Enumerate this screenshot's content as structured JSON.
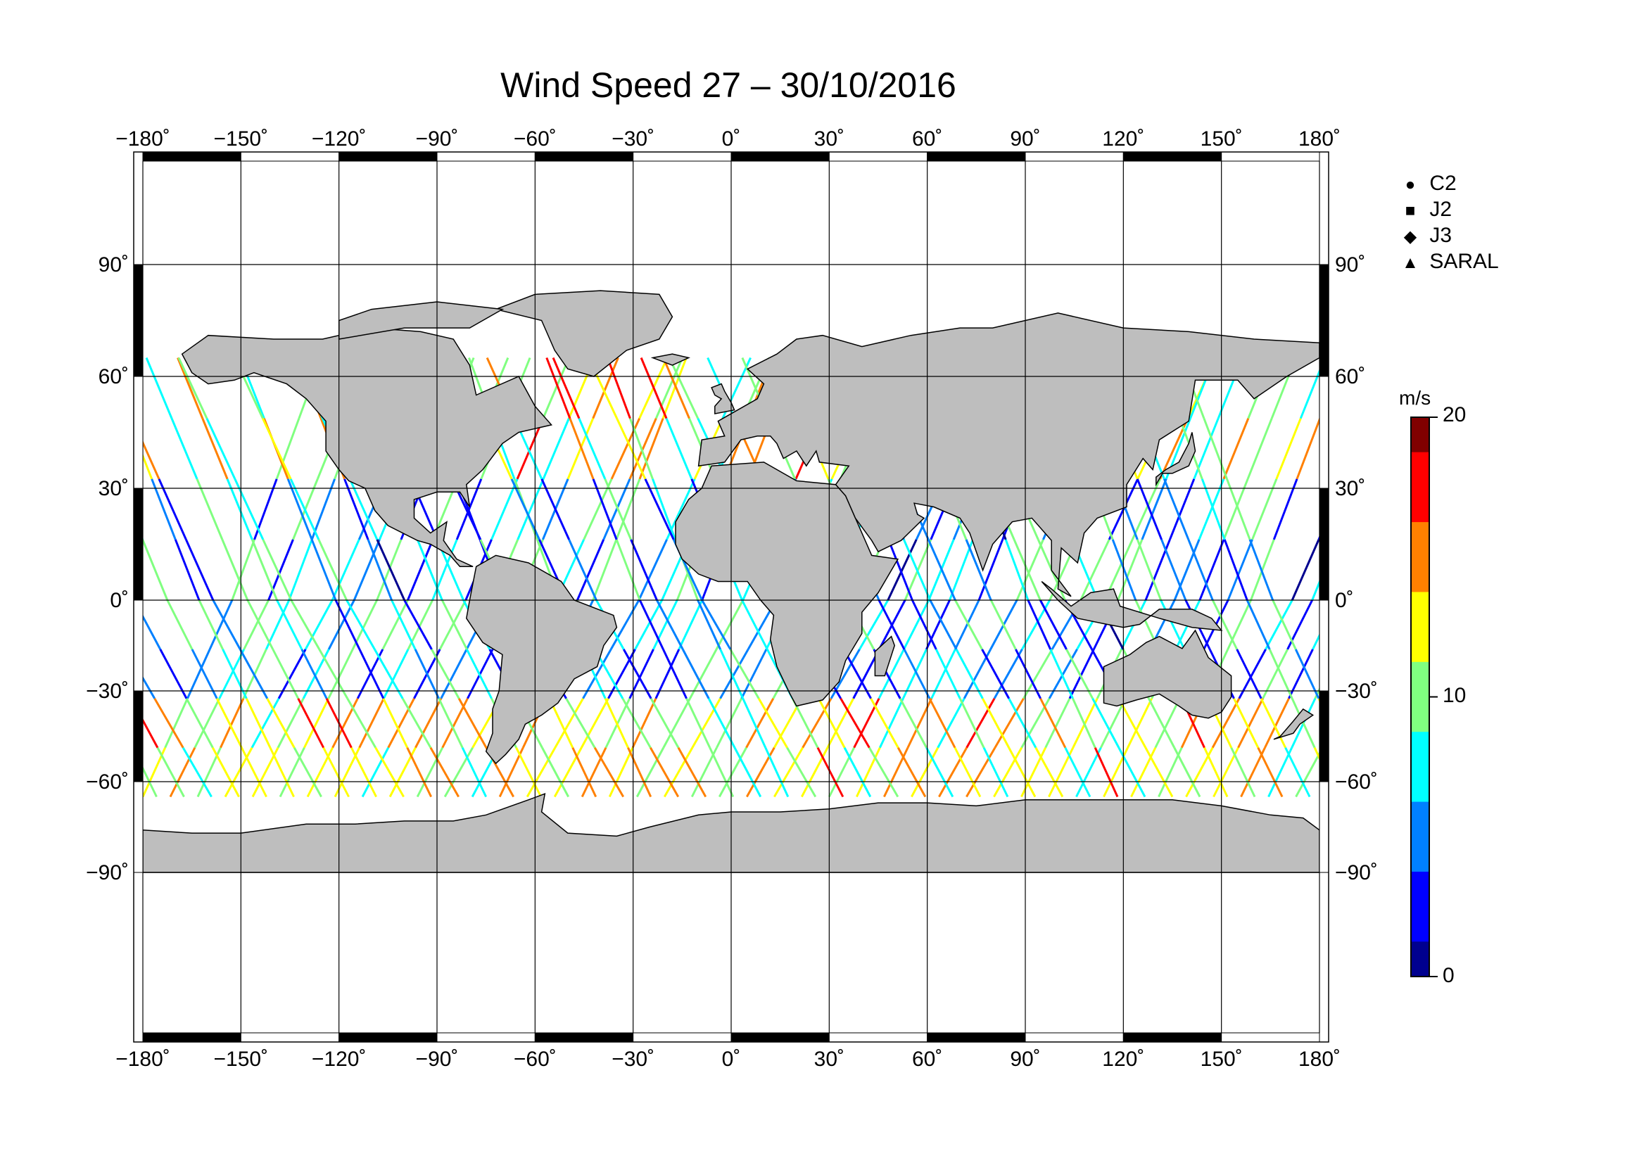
{
  "title": "Wind Speed 27 – 30/10/2016",
  "map": {
    "lon_ticks": [
      -180,
      -150,
      -120,
      -90,
      -60,
      -30,
      0,
      30,
      60,
      90,
      120,
      150,
      180
    ],
    "lat_ticks": [
      90,
      60,
      30,
      0,
      -30,
      -60,
      -90
    ],
    "lon_tick_labels": [
      "−180˚",
      "−150˚",
      "−120˚",
      "−90˚",
      "−60˚",
      "−30˚",
      "0˚",
      "30˚",
      "60˚",
      "90˚",
      "120˚",
      "150˚",
      "180˚"
    ],
    "lat_tick_labels": [
      "90˚",
      "60˚",
      "30˚",
      "0˚",
      "−30˚",
      "−60˚",
      "−90˚"
    ],
    "land_color": "#bebebe",
    "ocean_color": "#ffffff",
    "track_coverage_lat": [
      -65,
      65
    ]
  },
  "legend": {
    "items": [
      {
        "symbol": "circle-icon",
        "label": "C2"
      },
      {
        "symbol": "square-icon",
        "label": "J2"
      },
      {
        "symbol": "diamond-icon",
        "label": "J3"
      },
      {
        "symbol": "triangle-icon",
        "label": "SARAL"
      }
    ]
  },
  "colorbar": {
    "unit": "m/s",
    "min": 0,
    "max": 20,
    "tick_values": [
      0,
      10,
      20
    ],
    "tick_labels": [
      "0",
      "10",
      "20"
    ],
    "colormap": "jet",
    "colors": [
      "#00008f",
      "#0000ff",
      "#0080ff",
      "#00ffff",
      "#80ff80",
      "#ffff00",
      "#ff8000",
      "#ff0000",
      "#800000"
    ]
  }
}
